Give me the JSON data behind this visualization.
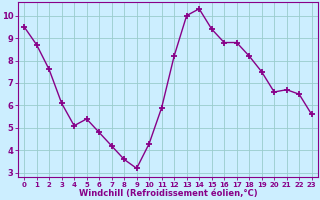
{
  "x": [
    0,
    1,
    2,
    3,
    4,
    5,
    6,
    7,
    8,
    9,
    10,
    11,
    12,
    13,
    14,
    15,
    16,
    17,
    18,
    19,
    20,
    21,
    22,
    23
  ],
  "y": [
    9.5,
    8.7,
    7.6,
    6.1,
    5.1,
    5.4,
    4.8,
    4.2,
    3.6,
    3.2,
    4.3,
    5.9,
    8.2,
    10.0,
    10.3,
    9.4,
    8.8,
    8.8,
    8.2,
    7.5,
    6.6,
    6.7,
    6.5,
    5.6
  ],
  "xlabel": "Windchill (Refroidissement éolien,°C)",
  "ylim": [
    2.8,
    10.6
  ],
  "yticks": [
    3,
    4,
    5,
    6,
    7,
    8,
    9,
    10
  ],
  "xticks": [
    0,
    1,
    2,
    3,
    4,
    5,
    6,
    7,
    8,
    9,
    10,
    11,
    12,
    13,
    14,
    15,
    16,
    17,
    18,
    19,
    20,
    21,
    22,
    23
  ],
  "line_color": "#880088",
  "marker_color": "#880088",
  "bg_color": "#cceeff",
  "grid_color": "#99cccc",
  "tick_color": "#880088",
  "xlabel_color": "#880088",
  "spine_color": "#880088"
}
